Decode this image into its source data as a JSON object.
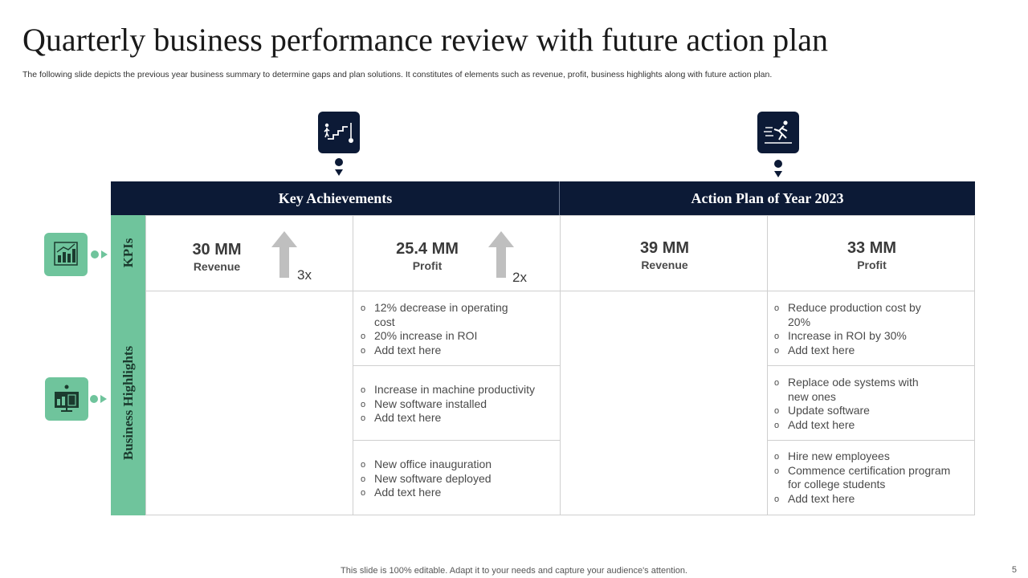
{
  "title": "Quarterly business performance review with future action plan",
  "subtitle": "The following slide depicts the previous year business summary to determine gaps and plan solutions. It constitutes of elements such as revenue, profit, business highlights along with future action plan.",
  "icons": {
    "achievements": "stairs-goal-icon",
    "action_plan": "running-person-icon",
    "kpis": "bar-chart-icon",
    "highlights": "presentation-board-icon",
    "arrow": "up-arrow-icon"
  },
  "colors": {
    "navy": "#0c1a36",
    "green": "#6fc49c",
    "arrow_gray": "#bfbfbf"
  },
  "headers": {
    "achievements": "Key Achievements",
    "action_plan": "Action Plan of Year 2023"
  },
  "rows": {
    "kpis": "KPIs",
    "highlights": "Business Highlights"
  },
  "kpis": [
    {
      "value": "30 MM",
      "label": "Revenue",
      "multiplier": "3x"
    },
    {
      "value": "25.4 MM",
      "label": "Profit",
      "multiplier": "2x"
    },
    {
      "value": "39 MM",
      "label": "Revenue"
    },
    {
      "value": "33 MM",
      "label": "Profit"
    }
  ],
  "highlights": {
    "achievements": [
      [
        "12% decrease in operating cost",
        "20% increase in ROI",
        "Add text here"
      ],
      [
        "Increase in machine productivity",
        "New software installed",
        "Add text here"
      ],
      [
        "New office inauguration",
        "New software deployed",
        "Add text here"
      ]
    ],
    "action_plan": [
      [
        "Reduce production cost by 20%",
        "Increase in ROI by 30%",
        "Add text here"
      ],
      [
        "Replace ode systems with new ones",
        "Update software",
        "Add text here"
      ],
      [
        "Hire new employees",
        "Commence certification program for college students",
        "Add text here"
      ]
    ]
  },
  "footer": "This slide is 100% editable. Adapt it to your needs and capture your audience's attention.",
  "page_number": "5"
}
